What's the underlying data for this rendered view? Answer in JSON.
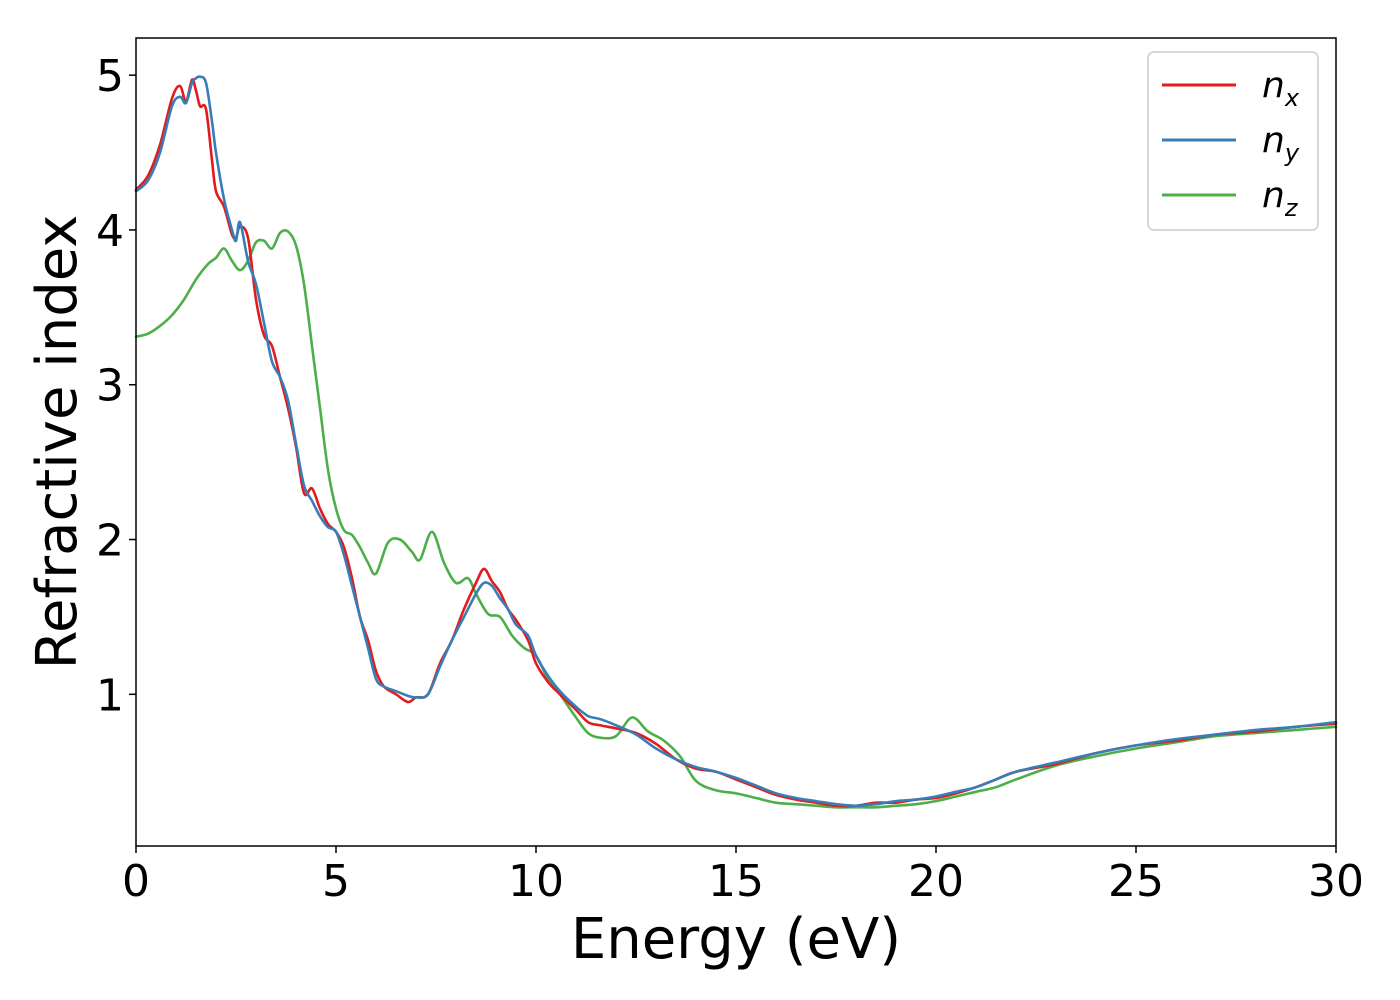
{
  "chart_data": {
    "type": "line",
    "title": "",
    "xlabel": "Energy (eV)",
    "ylabel": "Refractive index",
    "xlim": [
      0,
      30
    ],
    "ylim": [
      0.02,
      5.24
    ],
    "xticks": [
      0,
      5,
      10,
      15,
      20,
      25,
      30
    ],
    "yticks": [
      1,
      2,
      3,
      4,
      5
    ],
    "xtick_labels": [
      "0",
      "5",
      "10",
      "15",
      "20",
      "25",
      "30"
    ],
    "ytick_labels": [
      "1",
      "2",
      "3",
      "4",
      "5"
    ],
    "grid": false,
    "legend_position": "top-right",
    "series": [
      {
        "name": "n",
        "subscript": "x",
        "color": "#e41a1c",
        "x": [
          0,
          0.3,
          0.6,
          0.9,
          1.1,
          1.25,
          1.4,
          1.5,
          1.6,
          1.75,
          1.9,
          2.0,
          2.2,
          2.4,
          2.5,
          2.6,
          2.8,
          3.0,
          3.2,
          3.4,
          3.6,
          3.8,
          4.0,
          4.2,
          4.4,
          4.6,
          4.8,
          5.0,
          5.2,
          5.4,
          5.6,
          5.8,
          6.0,
          6.2,
          6.5,
          6.8,
          7.0,
          7.3,
          7.6,
          7.9,
          8.2,
          8.5,
          8.7,
          8.9,
          9.1,
          9.3,
          9.5,
          9.8,
          10.0,
          10.3,
          10.6,
          11.0,
          11.3,
          11.6,
          12.0,
          12.5,
          13.0,
          13.5,
          14.0,
          14.5,
          15.0,
          15.5,
          16.0,
          16.5,
          17.0,
          17.5,
          18.0,
          18.5,
          19.0,
          19.5,
          20.0,
          20.5,
          21.0,
          21.5,
          22.0,
          23.0,
          24.0,
          25.0,
          26.0,
          27.0,
          28.0,
          29.0,
          30.0
        ],
        "values": [
          4.26,
          4.35,
          4.55,
          4.85,
          4.93,
          4.83,
          4.97,
          4.9,
          4.8,
          4.78,
          4.45,
          4.25,
          4.15,
          3.97,
          3.95,
          4.02,
          3.95,
          3.55,
          3.32,
          3.25,
          3.05,
          2.85,
          2.6,
          2.3,
          2.33,
          2.2,
          2.1,
          2.05,
          1.95,
          1.75,
          1.5,
          1.35,
          1.15,
          1.05,
          1.0,
          0.95,
          0.98,
          1.0,
          1.2,
          1.35,
          1.55,
          1.72,
          1.81,
          1.73,
          1.66,
          1.55,
          1.48,
          1.35,
          1.2,
          1.08,
          1.0,
          0.9,
          0.82,
          0.8,
          0.78,
          0.75,
          0.68,
          0.58,
          0.52,
          0.5,
          0.45,
          0.4,
          0.35,
          0.32,
          0.3,
          0.28,
          0.28,
          0.3,
          0.3,
          0.32,
          0.33,
          0.36,
          0.4,
          0.45,
          0.5,
          0.55,
          0.62,
          0.67,
          0.7,
          0.74,
          0.76,
          0.79,
          0.81
        ]
      },
      {
        "name": "n",
        "subscript": "y",
        "color": "#377eb8",
        "x": [
          0,
          0.3,
          0.6,
          0.9,
          1.1,
          1.25,
          1.4,
          1.5,
          1.6,
          1.75,
          1.9,
          2.0,
          2.2,
          2.4,
          2.5,
          2.6,
          2.8,
          3.0,
          3.2,
          3.4,
          3.6,
          3.8,
          4.0,
          4.2,
          4.4,
          4.6,
          4.8,
          5.0,
          5.2,
          5.4,
          5.6,
          5.8,
          6.0,
          6.2,
          6.5,
          6.8,
          7.0,
          7.3,
          7.6,
          7.9,
          8.2,
          8.5,
          8.7,
          8.9,
          9.1,
          9.3,
          9.5,
          9.8,
          10.0,
          10.3,
          10.6,
          11.0,
          11.3,
          11.6,
          12.0,
          12.5,
          13.0,
          13.5,
          14.0,
          14.5,
          15.0,
          15.5,
          16.0,
          16.5,
          17.0,
          17.5,
          18.0,
          18.5,
          19.0,
          19.5,
          20.0,
          20.5,
          21.0,
          21.5,
          22.0,
          23.0,
          24.0,
          25.0,
          26.0,
          27.0,
          28.0,
          29.0,
          30.0
        ],
        "values": [
          4.25,
          4.32,
          4.5,
          4.8,
          4.86,
          4.82,
          4.95,
          4.98,
          4.99,
          4.95,
          4.7,
          4.5,
          4.2,
          4.0,
          3.93,
          4.05,
          3.8,
          3.65,
          3.4,
          3.15,
          3.05,
          2.9,
          2.62,
          2.35,
          2.25,
          2.15,
          2.08,
          2.05,
          1.9,
          1.7,
          1.5,
          1.3,
          1.1,
          1.05,
          1.02,
          0.99,
          0.98,
          1.0,
          1.18,
          1.35,
          1.5,
          1.65,
          1.72,
          1.7,
          1.62,
          1.55,
          1.45,
          1.38,
          1.25,
          1.12,
          1.02,
          0.92,
          0.86,
          0.84,
          0.8,
          0.74,
          0.65,
          0.58,
          0.53,
          0.5,
          0.46,
          0.41,
          0.36,
          0.33,
          0.31,
          0.29,
          0.28,
          0.29,
          0.31,
          0.32,
          0.34,
          0.37,
          0.4,
          0.45,
          0.5,
          0.56,
          0.62,
          0.67,
          0.71,
          0.74,
          0.77,
          0.79,
          0.82
        ]
      },
      {
        "name": "n",
        "subscript": "z",
        "color": "#4daf4a",
        "x": [
          0,
          0.3,
          0.6,
          0.9,
          1.2,
          1.5,
          1.8,
          2.0,
          2.2,
          2.4,
          2.6,
          2.8,
          3.0,
          3.2,
          3.4,
          3.6,
          3.8,
          4.0,
          4.2,
          4.4,
          4.6,
          4.8,
          5.0,
          5.2,
          5.4,
          5.6,
          5.8,
          6.0,
          6.3,
          6.6,
          6.9,
          7.1,
          7.4,
          7.7,
          8.0,
          8.3,
          8.5,
          8.8,
          9.1,
          9.4,
          9.7,
          10.0,
          10.3,
          10.6,
          11.0,
          11.3,
          11.6,
          12.0,
          12.4,
          12.8,
          13.2,
          13.6,
          14.0,
          14.5,
          15.0,
          15.5,
          16.0,
          16.5,
          17.0,
          17.5,
          18.0,
          18.5,
          19.0,
          19.5,
          20.0,
          20.5,
          21.0,
          21.5,
          22.0,
          23.0,
          24.0,
          25.0,
          26.0,
          27.0,
          28.0,
          29.0,
          30.0
        ],
        "values": [
          3.31,
          3.33,
          3.38,
          3.45,
          3.55,
          3.68,
          3.78,
          3.82,
          3.88,
          3.8,
          3.74,
          3.8,
          3.92,
          3.93,
          3.88,
          3.98,
          3.99,
          3.9,
          3.65,
          3.25,
          2.85,
          2.45,
          2.2,
          2.06,
          2.03,
          1.95,
          1.85,
          1.78,
          1.98,
          2.0,
          1.92,
          1.87,
          2.05,
          1.85,
          1.72,
          1.75,
          1.65,
          1.52,
          1.5,
          1.38,
          1.3,
          1.25,
          1.1,
          1.0,
          0.85,
          0.75,
          0.72,
          0.73,
          0.85,
          0.76,
          0.7,
          0.6,
          0.44,
          0.38,
          0.36,
          0.33,
          0.3,
          0.29,
          0.28,
          0.27,
          0.27,
          0.27,
          0.28,
          0.29,
          0.31,
          0.34,
          0.37,
          0.4,
          0.45,
          0.54,
          0.6,
          0.65,
          0.69,
          0.73,
          0.75,
          0.77,
          0.79
        ]
      }
    ]
  }
}
